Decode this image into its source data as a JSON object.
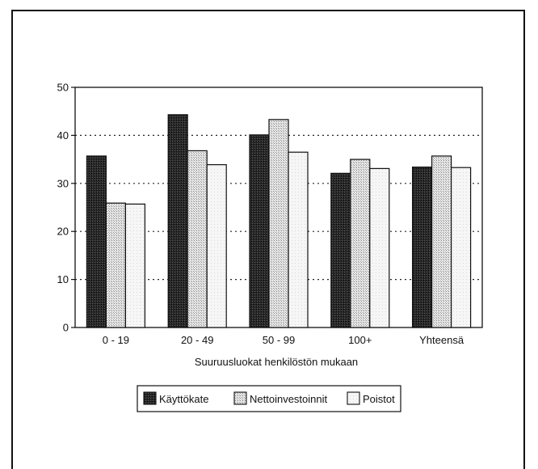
{
  "chart_data": {
    "type": "bar",
    "categories": [
      "0 - 19",
      "20 - 49",
      "50 - 99",
      "100+",
      "Yhteensä"
    ],
    "series": [
      {
        "name": "Käyttökate",
        "values": [
          35.7,
          44.3,
          40.1,
          32.1,
          33.4
        ],
        "color": "#1a1a1a"
      },
      {
        "name": "Nettoinvestoinnit",
        "values": [
          25.9,
          36.8,
          43.3,
          35.0,
          35.7
        ],
        "color": "#c8c8c8"
      },
      {
        "name": "Poistot",
        "values": [
          25.7,
          33.9,
          36.5,
          33.1,
          33.3
        ],
        "color": "#f0f0f0"
      }
    ],
    "yticks": [
      0,
      10,
      20,
      30,
      40,
      50
    ],
    "ylim": [
      0,
      50
    ],
    "xlabel": "Suuruusluokat henkilöstön mukaan",
    "ylabel": "",
    "title": "",
    "grid": "horizontal dotted",
    "legend_position": "bottom"
  }
}
